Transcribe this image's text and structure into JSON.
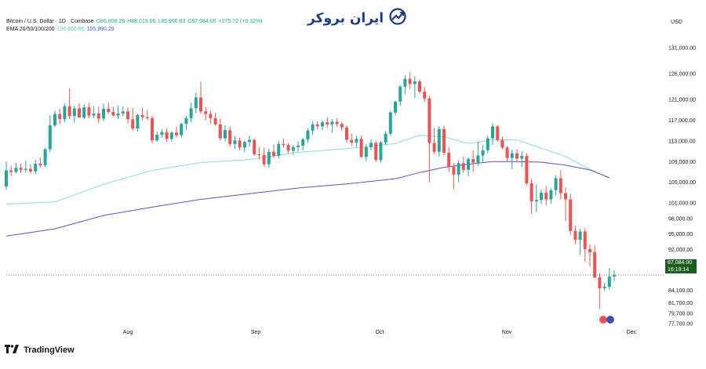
{
  "header": {
    "symbol": "Bitcoin / U.S. Dollar · 1D · Coinbase",
    "open": "O86,808.28",
    "high": "H88,019.06",
    "low": "L85,906.83",
    "close": "C87,084.00",
    "change": "+275.72 (+0.32%)",
    "ema_label": "EMA 20/50/100/200",
    "ema_val1": "106,606.96",
    "ema_val2": "105,990.29"
  },
  "logo": {
    "text": "ایران بروکر"
  },
  "currency": "USD",
  "brand": "TradingView",
  "price_badge": {
    "price": "87,084.00",
    "countdown": "16:19:14"
  },
  "colors": {
    "up": "#26a69a",
    "down": "#ef5350",
    "ema_fast": "#80deea",
    "ema_slow": "#5c4fd6",
    "badge": "#1b5e20"
  },
  "chart_data": {
    "type": "candlestick",
    "title": "Bitcoin / U.S. Dollar · 1D · Coinbase",
    "x_labels": [
      "Aug",
      "Sep",
      "Oct",
      "Nov",
      "Dec"
    ],
    "y_ticks": [
      131000,
      126000,
      121000,
      117000,
      113000,
      109000,
      105000,
      101000,
      98000,
      95000,
      92000,
      89000,
      84100,
      81700,
      79700,
      77700
    ],
    "ylim": [
      77700,
      131000
    ],
    "last_price": 87084,
    "ohlc": [
      [
        104200,
        109000,
        103600,
        107300
      ],
      [
        107300,
        108200,
        106200,
        107000
      ],
      [
        107000,
        108800,
        106700,
        107800
      ],
      [
        107800,
        108600,
        106800,
        107400
      ],
      [
        107400,
        109200,
        106900,
        107600
      ],
      [
        107600,
        108500,
        106700,
        107100
      ],
      [
        107100,
        109400,
        106600,
        108600
      ],
      [
        108600,
        109800,
        107900,
        108300
      ],
      [
        108300,
        111600,
        108000,
        111400
      ],
      [
        111400,
        118000,
        110800,
        116000
      ],
      [
        116000,
        118900,
        115700,
        118200
      ],
      [
        118200,
        119200,
        116300,
        117200
      ],
      [
        117200,
        120200,
        116600,
        119700
      ],
      [
        119700,
        123200,
        117200,
        117800
      ],
      [
        117800,
        119800,
        116500,
        119300
      ],
      [
        119300,
        120300,
        117800,
        117500
      ],
      [
        117500,
        120100,
        117200,
        119500
      ],
      [
        119500,
        120400,
        117400,
        117900
      ],
      [
        117900,
        119700,
        117400,
        118300
      ],
      [
        118300,
        119600,
        116400,
        117300
      ],
      [
        117300,
        120200,
        116800,
        119200
      ],
      [
        119200,
        120400,
        118200,
        118600
      ],
      [
        118600,
        119600,
        117800,
        117900
      ],
      [
        117900,
        119800,
        117200,
        118300
      ],
      [
        118300,
        119700,
        117800,
        118700
      ],
      [
        118700,
        119500,
        116400,
        117200
      ],
      [
        117200,
        119400,
        115000,
        115400
      ],
      [
        115400,
        118200,
        114800,
        118000
      ],
      [
        118000,
        119400,
        117000,
        117600
      ],
      [
        117600,
        118900,
        117000,
        117400
      ],
      [
        117400,
        117800,
        112600,
        113100
      ],
      [
        113100,
        114800,
        112800,
        114200
      ],
      [
        114200,
        115200,
        113600,
        114700
      ],
      [
        114700,
        115500,
        112800,
        113400
      ],
      [
        113400,
        114800,
        112900,
        114600
      ],
      [
        114600,
        115800,
        113700,
        114100
      ],
      [
        114100,
        116500,
        113600,
        116300
      ],
      [
        116300,
        117800,
        115200,
        117400
      ],
      [
        117400,
        120400,
        116600,
        119300
      ],
      [
        119300,
        122300,
        118400,
        121400
      ],
      [
        121400,
        124400,
        118200,
        118700
      ],
      [
        118700,
        119600,
        117000,
        118200
      ],
      [
        118200,
        118900,
        116300,
        117400
      ],
      [
        117400,
        118500,
        115900,
        116200
      ],
      [
        116200,
        117300,
        113000,
        113500
      ],
      [
        113500,
        116000,
        112900,
        115100
      ],
      [
        115100,
        115800,
        111900,
        112400
      ],
      [
        112400,
        114000,
        111400,
        113100
      ],
      [
        113100,
        113700,
        111200,
        111700
      ],
      [
        111700,
        113000,
        110800,
        112800
      ],
      [
        112800,
        114000,
        111900,
        113200
      ],
      [
        113200,
        113400,
        110100,
        110400
      ],
      [
        110400,
        111800,
        109400,
        110300
      ],
      [
        110300,
        111700,
        108100,
        108500
      ],
      [
        108500,
        111500,
        107800,
        110900
      ],
      [
        110900,
        112300,
        109700,
        110100
      ],
      [
        110100,
        113000,
        109600,
        112400
      ],
      [
        112400,
        113400,
        111700,
        112200
      ],
      [
        112200,
        112500,
        110600,
        111100
      ],
      [
        111100,
        112200,
        110300,
        111800
      ],
      [
        111800,
        112900,
        110900,
        112100
      ],
      [
        112100,
        113600,
        111200,
        113300
      ],
      [
        113300,
        115400,
        112600,
        115000
      ],
      [
        115000,
        116800,
        114100,
        116200
      ],
      [
        116200,
        116800,
        115300,
        115800
      ],
      [
        115800,
        117000,
        115100,
        116600
      ],
      [
        116600,
        117500,
        115500,
        116200
      ],
      [
        116200,
        117200,
        114600,
        116700
      ],
      [
        116700,
        117400,
        115800,
        116300
      ],
      [
        116300,
        116700,
        115000,
        115600
      ],
      [
        115600,
        116000,
        112600,
        113200
      ],
      [
        113200,
        114400,
        112000,
        112700
      ],
      [
        112700,
        114000,
        111800,
        113400
      ],
      [
        113400,
        114000,
        109800,
        109900
      ],
      [
        109900,
        112400,
        109100,
        111800
      ],
      [
        111800,
        113300,
        111200,
        112600
      ],
      [
        112600,
        113000,
        109000,
        109300
      ],
      [
        109300,
        113000,
        108800,
        112700
      ],
      [
        112700,
        114900,
        112200,
        114400
      ],
      [
        114400,
        118800,
        114000,
        118500
      ],
      [
        118500,
        120800,
        117900,
        120600
      ],
      [
        120600,
        123800,
        119800,
        123500
      ],
      [
        123500,
        125700,
        122000,
        125000
      ],
      [
        125000,
        126300,
        123000,
        124000
      ],
      [
        124000,
        125500,
        121300,
        124500
      ],
      [
        124500,
        124900,
        122200,
        122500
      ],
      [
        122500,
        123400,
        120600,
        121200
      ],
      [
        121200,
        121700,
        105000,
        112600
      ],
      [
        112600,
        115500,
        110500,
        110900
      ],
      [
        110900,
        115800,
        110000,
        115300
      ],
      [
        115300,
        115900,
        110200,
        110700
      ],
      [
        110700,
        111800,
        107000,
        108000
      ],
      [
        108000,
        108700,
        103700,
        106500
      ],
      [
        106500,
        109300,
        105000,
        108700
      ],
      [
        108700,
        110000,
        106900,
        107400
      ],
      [
        107400,
        109800,
        106200,
        109500
      ],
      [
        109500,
        111200,
        107000,
        108800
      ],
      [
        108800,
        112800,
        108200,
        110200
      ],
      [
        110200,
        112200,
        108800,
        111200
      ],
      [
        111200,
        114000,
        110600,
        113500
      ],
      [
        113500,
        116400,
        112200,
        115800
      ],
      [
        115800,
        116000,
        112800,
        113200
      ],
      [
        113200,
        113900,
        111400,
        111700
      ],
      [
        111700,
        112000,
        109000,
        109700
      ],
      [
        109700,
        111300,
        107500,
        110600
      ],
      [
        110600,
        111400,
        108800,
        109600
      ],
      [
        109600,
        111000,
        107900,
        110100
      ],
      [
        110100,
        110600,
        104400,
        104800
      ],
      [
        104800,
        105600,
        98900,
        101300
      ],
      [
        101300,
        104600,
        99300,
        101600
      ],
      [
        101600,
        103600,
        100800,
        103000
      ],
      [
        103000,
        104300,
        100500,
        101700
      ],
      [
        101700,
        103800,
        100900,
        103500
      ],
      [
        103500,
        106400,
        102500,
        105800
      ],
      [
        105800,
        107300,
        101700,
        102900
      ],
      [
        102900,
        104000,
        97500,
        101700
      ],
      [
        101700,
        102800,
        94900,
        95600
      ],
      [
        95600,
        96600,
        93000,
        93900
      ],
      [
        93900,
        96000,
        91000,
        95500
      ],
      [
        95500,
        96100,
        89600,
        92100
      ],
      [
        92100,
        93000,
        88800,
        91500
      ],
      [
        91500,
        92800,
        86500,
        86600
      ],
      [
        86600,
        87400,
        80600,
        84500
      ],
      [
        84500,
        85600,
        84000,
        84800
      ],
      [
        84800,
        88400,
        84300,
        86800
      ],
      [
        86800,
        88000,
        85900,
        87100
      ]
    ],
    "ema_fast_points": [
      [
        0,
        100800
      ],
      [
        10,
        101200
      ],
      [
        20,
        104600
      ],
      [
        30,
        107300
      ],
      [
        40,
        108800
      ],
      [
        50,
        109400
      ],
      [
        60,
        110800
      ],
      [
        70,
        111500
      ],
      [
        80,
        112500
      ],
      [
        85,
        114100
      ],
      [
        90,
        113800
      ],
      [
        95,
        112500
      ],
      [
        100,
        113200
      ],
      [
        105,
        113200
      ],
      [
        110,
        111600
      ],
      [
        115,
        110000
      ],
      [
        120,
        107500
      ],
      [
        124,
        105800
      ]
    ],
    "ema_slow_points": [
      [
        0,
        94600
      ],
      [
        10,
        96000
      ],
      [
        20,
        98600
      ],
      [
        30,
        100200
      ],
      [
        40,
        101700
      ],
      [
        50,
        102800
      ],
      [
        60,
        103900
      ],
      [
        70,
        104700
      ],
      [
        80,
        105700
      ],
      [
        85,
        106900
      ],
      [
        90,
        107900
      ],
      [
        95,
        108500
      ],
      [
        100,
        109000
      ],
      [
        105,
        109000
      ],
      [
        110,
        108900
      ],
      [
        115,
        108300
      ],
      [
        120,
        107400
      ],
      [
        124,
        105900
      ]
    ]
  }
}
